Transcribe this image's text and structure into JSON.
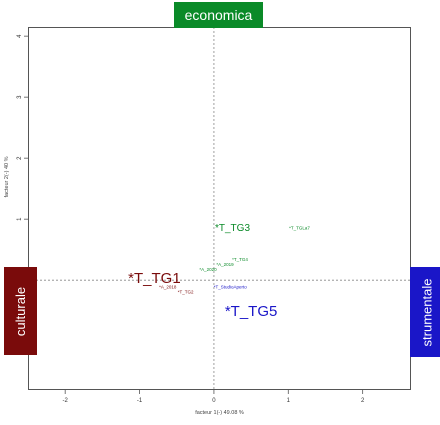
{
  "header": {
    "top_label": "economica",
    "left_label": "culturale",
    "right_label": "strumentale"
  },
  "colors": {
    "economica": "#0a8a28",
    "culturale": "#7a0b0b",
    "strumentale": "#1a16c8"
  },
  "chart_data": {
    "type": "scatter",
    "xlabel": "facteur 1(-) 49.08 %",
    "ylabel": "facteur 2(-) 40 %",
    "xlim": [
      -2.5,
      2.65
    ],
    "ylim": [
      -1.8,
      4.15
    ],
    "x_ticks": [
      "-2",
      "-1",
      "0",
      "1",
      "2"
    ],
    "y_ticks": [
      "0",
      "1",
      "2",
      "3",
      "4"
    ],
    "x_tick_values": [
      -2,
      -1,
      0,
      1,
      2
    ],
    "y_tick_values": [
      0,
      1,
      2,
      3,
      4
    ],
    "grid": false,
    "reference_lines": {
      "x": 0,
      "y": 0
    },
    "points": [
      {
        "label": "*T_TG3",
        "x": 0.25,
        "y": 0.85,
        "color": "#0a8a28",
        "size": "medium"
      },
      {
        "label": "*T_TGLa7",
        "x": 1.15,
        "y": 0.85,
        "color": "#0a8a28",
        "size": "tiny"
      },
      {
        "label": "*T_TG4",
        "x": 0.35,
        "y": 0.33,
        "color": "#0a8a28",
        "size": "tiny"
      },
      {
        "label": "*A_2019",
        "x": 0.15,
        "y": 0.25,
        "color": "#0a8a28",
        "size": "tiny"
      },
      {
        "label": "*A_2020",
        "x": -0.08,
        "y": 0.17,
        "color": "#0a8a28",
        "size": "tiny"
      },
      {
        "label": "*T_TG1",
        "x": -0.8,
        "y": 0.02,
        "color": "#7a0b0b",
        "size": "large"
      },
      {
        "label": "*A_2018",
        "x": -0.62,
        "y": -0.12,
        "color": "#7a0b0b",
        "size": "tiny"
      },
      {
        "label": "*T_TG2",
        "x": -0.38,
        "y": -0.2,
        "color": "#7a0b0b",
        "size": "tiny"
      },
      {
        "label": "*T_StudioAperto",
        "x": 0.22,
        "y": -0.12,
        "color": "#1a16c8",
        "size": "tiny"
      },
      {
        "label": "*T_TG5",
        "x": 0.5,
        "y": -0.52,
        "color": "#1a16c8",
        "size": "large"
      }
    ]
  }
}
